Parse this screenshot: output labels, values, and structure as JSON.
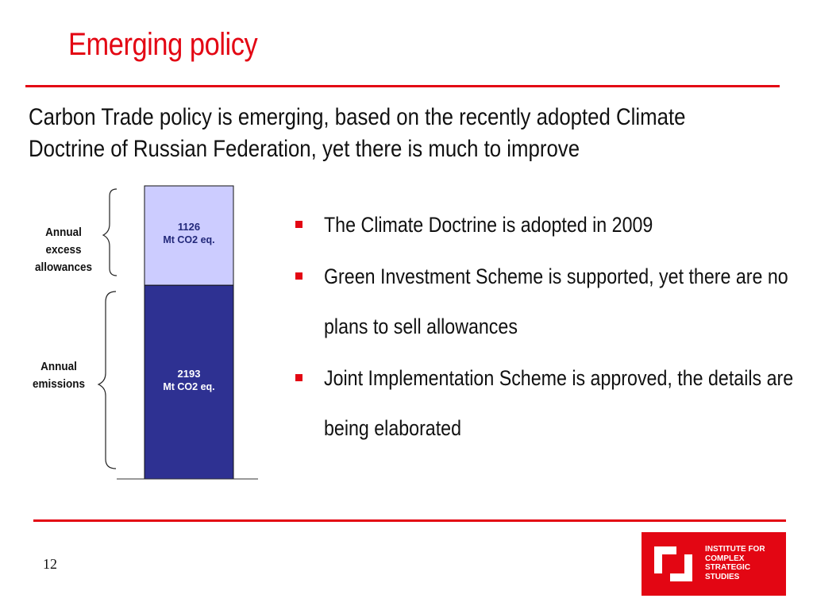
{
  "slide": {
    "title": "Emerging policy",
    "subtitle": "Carbon Trade policy is emerging, based on the recently adopted Climate Doctrine of Russian Federation, yet there is much to improve",
    "page_number": "12",
    "accent_color": "#e30613"
  },
  "bullets": [
    "The Climate Doctrine is adopted in 2009",
    "Green Investment Scheme is supported, yet there are no plans to sell allowances",
    "Joint Implementation Scheme is approved, the details are being elaborated"
  ],
  "chart_data": {
    "type": "bar",
    "stacked": true,
    "categories": [
      ""
    ],
    "series": [
      {
        "name": "Annual emissions",
        "values": [
          2193
        ],
        "label": "2193",
        "unit": "Mt CO2 eq.",
        "color": "#2e3192"
      },
      {
        "name": "Annual excess allowances",
        "values": [
          1126
        ],
        "label": "1126",
        "unit": "Mt CO2 eq.",
        "color": "#ccccff"
      }
    ],
    "side_labels": {
      "excess": "Annual excess allowances",
      "emissions": "Annual emissions"
    }
  },
  "logo": {
    "lines": [
      "INSTITUTE FOR",
      "COMPLEX",
      "STRATEGIC",
      "STUDIES"
    ]
  }
}
